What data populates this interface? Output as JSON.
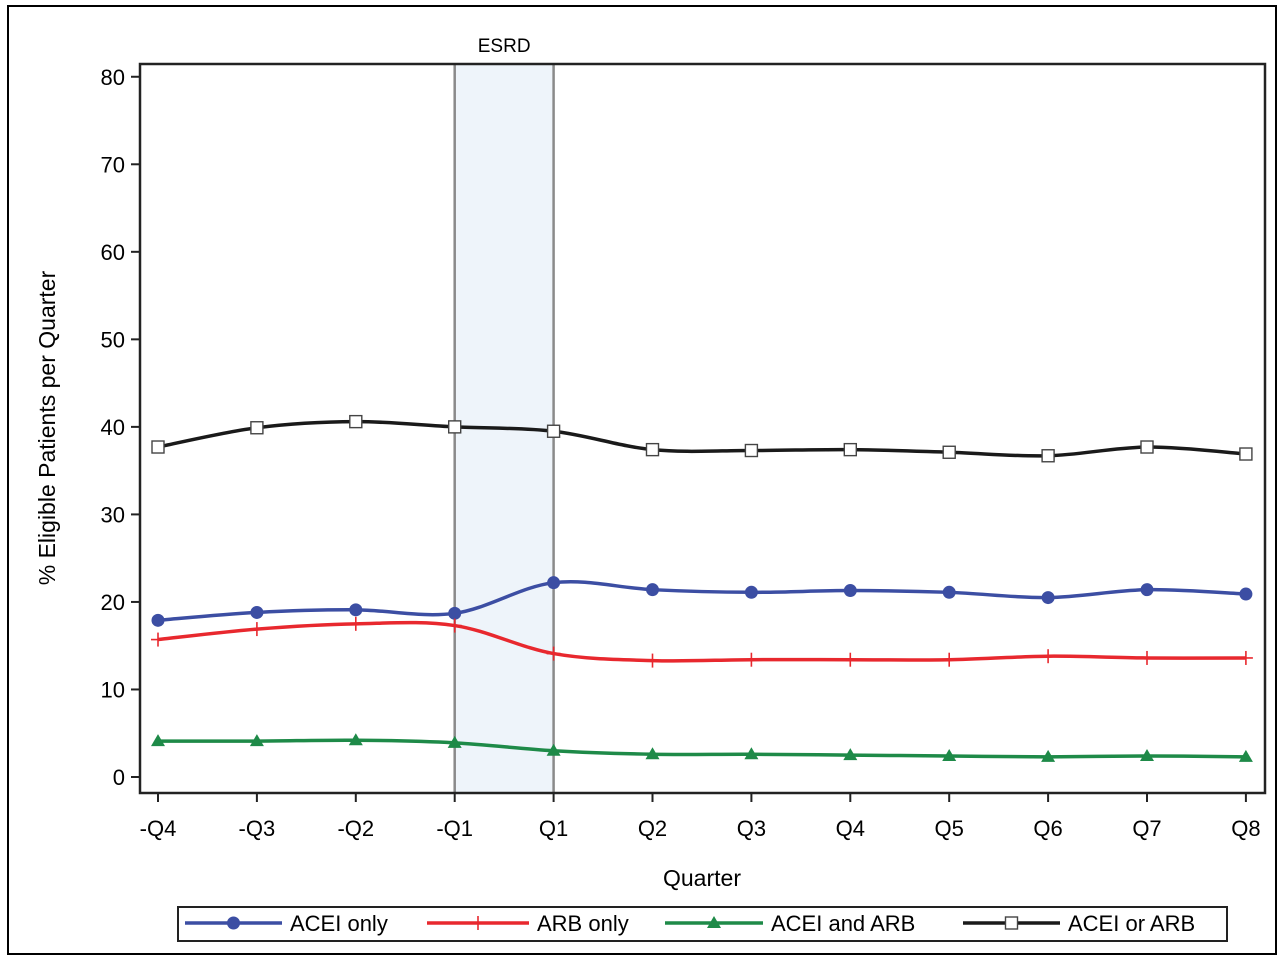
{
  "chart_data": {
    "type": "line",
    "title": "",
    "xlabel": "Quarter",
    "ylabel": "% Eligible Patients per Quarter",
    "categories": [
      "-Q4",
      "-Q3",
      "-Q2",
      "-Q1",
      "Q1",
      "Q2",
      "Q3",
      "Q4",
      "Q5",
      "Q6",
      "Q7",
      "Q8"
    ],
    "ylim": [
      0,
      80
    ],
    "yticks": [
      0,
      10,
      20,
      30,
      40,
      50,
      60,
      70,
      80
    ],
    "grid": false,
    "legend_position": "bottom",
    "band": {
      "label": "ESRD",
      "from": "-Q1",
      "to": "Q1",
      "color": "#eef4fa"
    },
    "series": [
      {
        "name": "ACEI only",
        "color": "#3c4ea3",
        "marker": "filled-circle",
        "values": [
          17.9,
          18.8,
          19.1,
          18.7,
          22.2,
          21.4,
          21.1,
          21.3,
          21.1,
          20.5,
          21.4,
          20.9
        ]
      },
      {
        "name": "ARB only",
        "color": "#e8282e",
        "marker": "plus",
        "values": [
          15.7,
          16.9,
          17.5,
          17.3,
          14.1,
          13.3,
          13.4,
          13.4,
          13.4,
          13.8,
          13.6,
          13.6
        ]
      },
      {
        "name": "ACEI and ARB",
        "color": "#1e8a48",
        "marker": "filled-triangle",
        "values": [
          4.1,
          4.1,
          4.2,
          3.9,
          3.0,
          2.6,
          2.6,
          2.5,
          2.4,
          2.3,
          2.4,
          2.3
        ]
      },
      {
        "name": "ACEI or ARB",
        "color": "#1a1a1a",
        "marker": "open-square",
        "values": [
          37.7,
          39.9,
          40.6,
          40.0,
          39.5,
          37.4,
          37.3,
          37.4,
          37.1,
          36.7,
          37.7,
          36.9
        ]
      }
    ]
  }
}
